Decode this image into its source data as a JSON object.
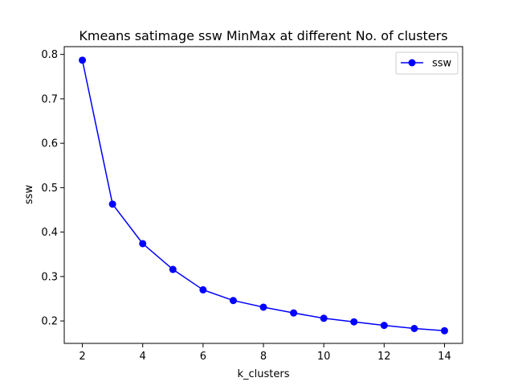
{
  "chart_data": {
    "type": "line",
    "title": "Kmeans satimage ssw MinMax at different No. of clusters",
    "xlabel": "k_clusters",
    "ylabel": "ssw",
    "x": [
      2,
      3,
      4,
      5,
      6,
      7,
      8,
      9,
      10,
      11,
      12,
      13,
      14
    ],
    "series": [
      {
        "name": "ssw",
        "color": "#0000ff",
        "marker": "circle",
        "values": [
          0.787,
          0.463,
          0.374,
          0.316,
          0.27,
          0.246,
          0.231,
          0.218,
          0.206,
          0.198,
          0.19,
          0.183,
          0.178
        ]
      }
    ],
    "xlim": [
      1.4,
      14.6
    ],
    "ylim": [
      0.1495,
      0.8175
    ],
    "xticks": [
      2,
      4,
      6,
      8,
      10,
      12,
      14
    ],
    "yticks": [
      0.2,
      0.3,
      0.4,
      0.5,
      0.6,
      0.7,
      0.8
    ],
    "xtick_labels": [
      "2",
      "4",
      "6",
      "8",
      "10",
      "12",
      "14"
    ],
    "ytick_labels": [
      "0.2",
      "0.3",
      "0.4",
      "0.5",
      "0.6",
      "0.7",
      "0.8"
    ],
    "grid": false,
    "legend_position": "top-right"
  }
}
